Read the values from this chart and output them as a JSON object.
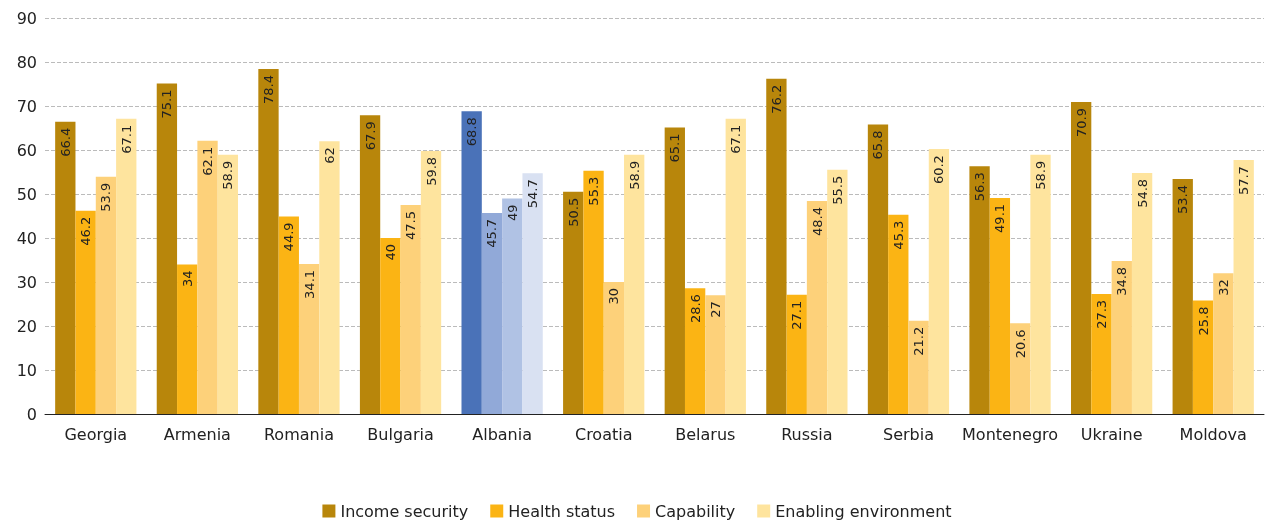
{
  "chart_data": {
    "type": "bar",
    "categories": [
      "Georgia",
      "Armenia",
      "Romania",
      "Bulgaria",
      "Albania",
      "Croatia",
      "Belarus",
      "Russia",
      "Serbia",
      "Montenegro",
      "Ukraine",
      "Moldova"
    ],
    "series": [
      {
        "name": "Income security",
        "color": "#b8860b",
        "colors": [
          "#b8860b",
          "#b8860b",
          "#b8860b",
          "#b8860b",
          "#4a72b8",
          "#b8860b",
          "#b8860b",
          "#b8860b",
          "#b8860b",
          "#b8860b",
          "#b8860b",
          "#b8860b"
        ],
        "values": [
          66.4,
          75.1,
          78.4,
          67.9,
          68.8,
          50.5,
          65.1,
          76.2,
          65.8,
          56.3,
          70.9,
          53.4
        ]
      },
      {
        "name": "Health status",
        "color": "#fbb414",
        "colors": [
          "#fbb414",
          "#fbb414",
          "#fbb414",
          "#fbb414",
          "#91a9d8",
          "#fbb414",
          "#fbb414",
          "#fbb414",
          "#fbb414",
          "#fbb414",
          "#fbb414",
          "#fbb414"
        ],
        "values": [
          46.2,
          34,
          44.9,
          40,
          45.7,
          55.3,
          28.6,
          27.1,
          45.3,
          49.1,
          27.3,
          25.8
        ]
      },
      {
        "name": "Capability",
        "color": "#fdd17a",
        "colors": [
          "#fdd17a",
          "#fdd17a",
          "#fdd17a",
          "#fdd17a",
          "#b0c2e4",
          "#fdd17a",
          "#fdd17a",
          "#fdd17a",
          "#fdd17a",
          "#fdd17a",
          "#fdd17a",
          "#fdd17a"
        ],
        "values": [
          53.9,
          62.1,
          34.1,
          47.5,
          49,
          30,
          27,
          48.4,
          21.2,
          20.6,
          34.8,
          32
        ]
      },
      {
        "name": "Enabling environment",
        "color": "#fee49e",
        "colors": [
          "#fee49e",
          "#fee49e",
          "#fee49e",
          "#fee49e",
          "#d9e1f2",
          "#fee49e",
          "#fee49e",
          "#fee49e",
          "#fee49e",
          "#fee49e",
          "#fee49e",
          "#fee49e"
        ],
        "values": [
          67.1,
          58.9,
          62,
          59.8,
          54.7,
          58.9,
          67.1,
          55.5,
          60.2,
          58.9,
          54.8,
          57.7
        ]
      }
    ],
    "ylim": [
      0,
      90
    ],
    "yticks": [
      0,
      10,
      20,
      30,
      40,
      50,
      60,
      70,
      80,
      90
    ],
    "grid": "y",
    "legend": "bottom",
    "data_labels": true
  }
}
